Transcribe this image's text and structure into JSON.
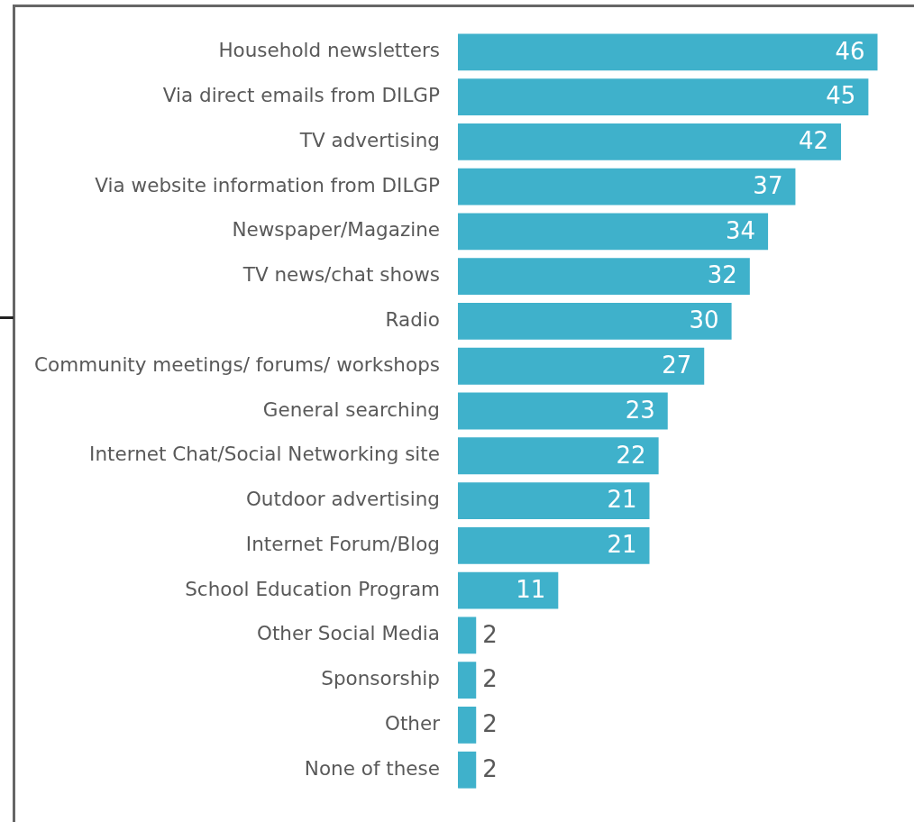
{
  "chart_data": {
    "type": "bar",
    "orientation": "horizontal",
    "categories": [
      "Household newsletters",
      "Via direct emails from DILGP",
      "TV advertising",
      "Via website information from DILGP",
      "Newspaper/Magazine",
      "TV news/chat shows",
      "Radio",
      "Community meetings/ forums/ workshops",
      "General searching",
      "Internet Chat/Social Networking site",
      "Outdoor advertising",
      "Internet Forum/Blog",
      "School Education Program",
      "Other Social Media",
      "Sponsorship",
      "Other",
      "None of these"
    ],
    "values": [
      46,
      45,
      42,
      37,
      34,
      32,
      30,
      27,
      23,
      22,
      21,
      21,
      11,
      2,
      2,
      2,
      2
    ],
    "color": "#3fb1cb",
    "data_labels": true
  }
}
